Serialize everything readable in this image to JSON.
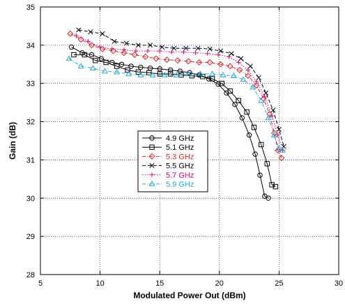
{
  "chart_data": {
    "type": "line",
    "title": "",
    "xlabel": "Modulated Power Out (dBm)",
    "ylabel": "Gain (dB)",
    "xlim": [
      5,
      30
    ],
    "ylim": [
      28,
      35
    ],
    "xticks": [
      5,
      10,
      15,
      20,
      25,
      30
    ],
    "yticks": [
      28,
      29,
      30,
      31,
      32,
      33,
      34,
      35
    ],
    "grid": true,
    "legend_position": "center",
    "series": [
      {
        "name": "4.9 GHz",
        "color": "#000000",
        "marker": "circle",
        "dash": "solid",
        "x": [
          7.6,
          8.5,
          9.3,
          10.1,
          11.0,
          11.8,
          12.6,
          13.4,
          14.2,
          15.0,
          15.9,
          16.7,
          17.5,
          18.3,
          19.1,
          19.9,
          20.6,
          21.3,
          21.9,
          22.5,
          23.0,
          23.4,
          23.8,
          24.1
        ],
        "y": [
          33.95,
          33.8,
          33.75,
          33.65,
          33.55,
          33.5,
          33.45,
          33.42,
          33.4,
          33.38,
          33.35,
          33.32,
          33.28,
          33.22,
          33.12,
          32.98,
          32.75,
          32.45,
          32.1,
          31.65,
          31.15,
          30.6,
          30.05,
          30.0
        ]
      },
      {
        "name": "5.1 GHz",
        "color": "#000000",
        "marker": "square",
        "dash": "solid",
        "x": [
          7.8,
          8.7,
          9.6,
          10.5,
          11.4,
          12.3,
          13.2,
          14.1,
          15.0,
          15.9,
          16.8,
          17.7,
          18.6,
          19.4,
          20.2,
          20.9,
          21.6,
          22.3,
          22.9,
          23.5,
          24.0,
          24.4,
          24.7
        ],
        "y": [
          33.75,
          33.75,
          33.6,
          33.55,
          33.45,
          33.35,
          33.3,
          33.28,
          33.25,
          33.25,
          33.22,
          33.2,
          33.18,
          33.12,
          33.0,
          32.8,
          32.55,
          32.25,
          31.85,
          31.4,
          30.9,
          30.35,
          30.3
        ]
      },
      {
        "name": "5.3 GHz",
        "color": "#e02020",
        "marker": "diamond",
        "dash": "dashdot",
        "x": [
          7.5,
          8.4,
          9.3,
          10.2,
          11.1,
          12.0,
          12.9,
          13.8,
          14.7,
          15.6,
          16.5,
          17.4,
          18.3,
          19.2,
          20.1,
          20.9,
          21.7,
          22.4,
          23.1,
          23.7,
          24.2,
          24.6,
          24.9,
          25.2
        ],
        "y": [
          34.3,
          34.15,
          34.0,
          33.9,
          33.85,
          33.8,
          33.75,
          33.7,
          33.65,
          33.62,
          33.6,
          33.58,
          33.55,
          33.55,
          33.5,
          33.45,
          33.35,
          33.2,
          32.95,
          32.6,
          32.2,
          31.7,
          31.25,
          31.05
        ]
      },
      {
        "name": "5.5 GHz",
        "color": "#000000",
        "marker": "x",
        "dash": "dashed",
        "x": [
          8.2,
          9.2,
          10.2,
          11.2,
          12.2,
          13.2,
          14.2,
          15.2,
          16.2,
          17.2,
          18.2,
          19.2,
          20.1,
          21.0,
          21.8,
          22.6,
          23.3,
          23.9,
          24.5,
          25.0,
          25.4
        ],
        "y": [
          34.4,
          34.35,
          34.3,
          34.1,
          34.05,
          34.0,
          34.0,
          33.95,
          33.92,
          33.92,
          33.92,
          33.9,
          33.85,
          33.78,
          33.65,
          33.45,
          33.15,
          32.75,
          32.3,
          31.8,
          31.35
        ]
      },
      {
        "name": "5.7 GHz",
        "color": "#e0007a",
        "marker": "plus",
        "dash": "dotted",
        "x": [
          8.0,
          9.0,
          10.0,
          11.0,
          12.0,
          13.0,
          14.0,
          15.0,
          16.0,
          17.0,
          18.0,
          19.0,
          19.9,
          20.8,
          21.6,
          22.4,
          23.1,
          23.8,
          24.4,
          24.9,
          25.3
        ],
        "y": [
          34.25,
          34.1,
          33.95,
          33.9,
          33.88,
          33.85,
          33.85,
          33.85,
          33.82,
          33.82,
          33.8,
          33.78,
          33.75,
          33.7,
          33.55,
          33.35,
          33.05,
          32.65,
          32.15,
          31.65,
          31.25
        ]
      },
      {
        "name": "5.9 GHz",
        "color": "#20a8d8",
        "marker": "triangle",
        "dash": "dashdot",
        "x": [
          7.4,
          8.4,
          9.4,
          10.4,
          11.4,
          12.4,
          13.4,
          14.4,
          15.4,
          16.4,
          17.4,
          18.4,
          19.4,
          20.3,
          21.2,
          22.0,
          22.8,
          23.5,
          24.1,
          24.6,
          25.0,
          25.3
        ],
        "y": [
          33.65,
          33.45,
          33.4,
          33.32,
          33.3,
          33.25,
          33.22,
          33.22,
          33.22,
          33.22,
          33.25,
          33.25,
          33.25,
          33.22,
          33.2,
          33.1,
          32.9,
          32.55,
          32.1,
          31.65,
          31.3,
          31.25
        ]
      }
    ]
  }
}
